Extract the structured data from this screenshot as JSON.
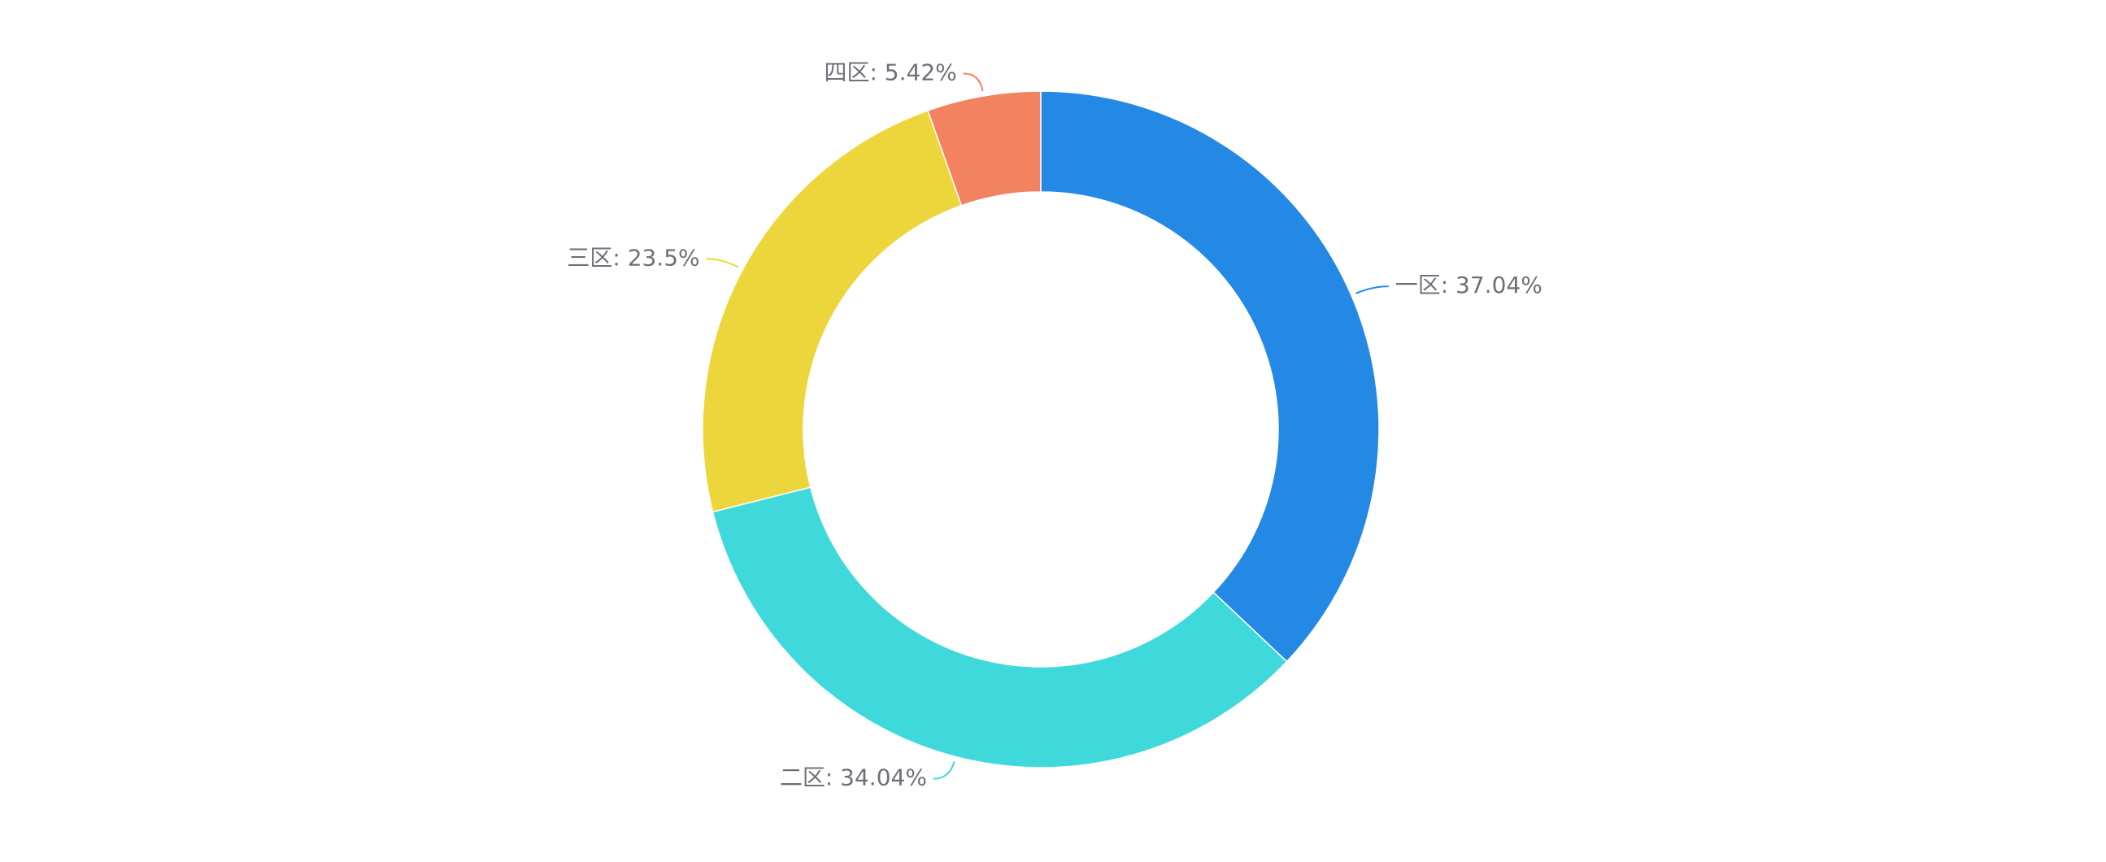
{
  "chart_data": {
    "type": "pie",
    "variant": "donut",
    "slices": [
      {
        "name": "一区",
        "value": 37.04,
        "label": "一区: 37.04%",
        "color": "#2389e4"
      },
      {
        "name": "二区",
        "value": 34.04,
        "label": "二区: 34.04%",
        "color": "#3fd9db"
      },
      {
        "name": "三区",
        "value": 23.5,
        "label": "三区: 23.5%",
        "color": "#edd63c"
      },
      {
        "name": "四区",
        "value": 5.42,
        "label": "四区: 5.42%",
        "color": "#f28260"
      }
    ],
    "start_angle": "12 o'clock",
    "direction": "clockwise",
    "label_color": "#6e7079",
    "legend": "none"
  }
}
